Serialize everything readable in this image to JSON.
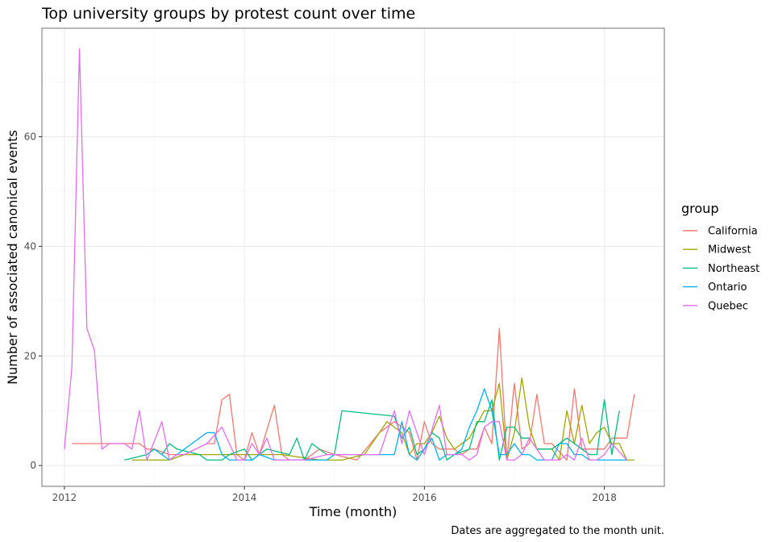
{
  "chart_data": {
    "type": "line",
    "title": "Top university groups by protest count over time",
    "xlabel": "Time (month)",
    "ylabel": "Number of associated canonical events",
    "caption": "Dates are aggregated to the month unit.",
    "xlim": [
      "2011-10",
      "2018-09"
    ],
    "ylim": [
      -3.8,
      79.8
    ],
    "x_ticks": [
      "2012-01",
      "2014-01",
      "2016-01",
      "2018-01"
    ],
    "x_tick_labels": [
      "2012",
      "2014",
      "2016",
      "2018"
    ],
    "y_ticks": [
      0,
      20,
      40,
      60
    ],
    "y_tick_labels": [
      "0",
      "20",
      "40",
      "60"
    ],
    "grid": true,
    "legend": {
      "title": "group",
      "position": "right"
    },
    "series": [
      {
        "name": "California",
        "color": "#F8766D",
        "points": [
          [
            "2012-02",
            4
          ],
          [
            "2012-07",
            4
          ],
          [
            "2012-11",
            4
          ],
          [
            "2012-12",
            3
          ],
          [
            "2013-01",
            3
          ],
          [
            "2013-03",
            2
          ],
          [
            "2013-05",
            2
          ],
          [
            "2013-08",
            4
          ],
          [
            "2013-09",
            4
          ],
          [
            "2013-10",
            12
          ],
          [
            "2013-11",
            13
          ],
          [
            "2013-12",
            2
          ],
          [
            "2014-01",
            1
          ],
          [
            "2014-02",
            6
          ],
          [
            "2014-03",
            2
          ],
          [
            "2014-05",
            11
          ],
          [
            "2014-06",
            2
          ],
          [
            "2014-07",
            1
          ],
          [
            "2014-09",
            1
          ],
          [
            "2014-11",
            3
          ],
          [
            "2015-01",
            2
          ],
          [
            "2015-04",
            1
          ],
          [
            "2015-07",
            6
          ],
          [
            "2015-09",
            8
          ],
          [
            "2015-10",
            7
          ],
          [
            "2015-11",
            6
          ],
          [
            "2015-12",
            1
          ],
          [
            "2016-01",
            8
          ],
          [
            "2016-02",
            4
          ],
          [
            "2016-03",
            3
          ],
          [
            "2016-05",
            3
          ],
          [
            "2016-06",
            2
          ],
          [
            "2016-07",
            3
          ],
          [
            "2016-08",
            3
          ],
          [
            "2016-09",
            7
          ],
          [
            "2016-10",
            4
          ],
          [
            "2016-11",
            25
          ],
          [
            "2016-12",
            1
          ],
          [
            "2017-01",
            15
          ],
          [
            "2017-02",
            3
          ],
          [
            "2017-03",
            4
          ],
          [
            "2017-04",
            13
          ],
          [
            "2017-05",
            4
          ],
          [
            "2017-06",
            4
          ],
          [
            "2017-08",
            1
          ],
          [
            "2017-09",
            14
          ],
          [
            "2017-10",
            3
          ],
          [
            "2017-11",
            3
          ],
          [
            "2017-12",
            3
          ],
          [
            "2018-01",
            3
          ],
          [
            "2018-02",
            5
          ],
          [
            "2018-04",
            5
          ],
          [
            "2018-05",
            13
          ]
        ]
      },
      {
        "name": "Midwest",
        "color": "#A3A500",
        "points": [
          [
            "2012-10",
            1
          ],
          [
            "2013-03",
            1
          ],
          [
            "2013-05",
            2
          ],
          [
            "2013-08",
            2
          ],
          [
            "2014-06",
            2
          ],
          [
            "2014-11",
            1
          ],
          [
            "2015-02",
            1
          ],
          [
            "2015-05",
            2
          ],
          [
            "2015-08",
            8
          ],
          [
            "2015-09",
            7
          ],
          [
            "2015-10",
            6
          ],
          [
            "2015-11",
            2
          ],
          [
            "2015-12",
            4
          ],
          [
            "2016-01",
            4
          ],
          [
            "2016-02",
            6
          ],
          [
            "2016-03",
            9
          ],
          [
            "2016-04",
            5
          ],
          [
            "2016-05",
            3
          ],
          [
            "2016-07",
            5
          ],
          [
            "2016-09",
            10
          ],
          [
            "2016-10",
            10
          ],
          [
            "2016-11",
            15
          ],
          [
            "2016-12",
            1
          ],
          [
            "2017-01",
            6
          ],
          [
            "2017-02",
            16
          ],
          [
            "2017-03",
            7
          ],
          [
            "2017-04",
            3
          ],
          [
            "2017-05",
            3
          ],
          [
            "2017-06",
            3
          ],
          [
            "2017-07",
            1
          ],
          [
            "2017-08",
            10
          ],
          [
            "2017-09",
            4
          ],
          [
            "2017-10",
            11
          ],
          [
            "2017-11",
            4
          ],
          [
            "2017-12",
            6
          ],
          [
            "2018-01",
            7
          ],
          [
            "2018-02",
            4
          ],
          [
            "2018-03",
            4
          ],
          [
            "2018-04",
            1
          ],
          [
            "2018-05",
            1
          ]
        ]
      },
      {
        "name": "Northeast",
        "color": "#00BF7D",
        "points": [
          [
            "2012-09",
            1
          ],
          [
            "2012-12",
            2
          ],
          [
            "2013-01",
            3
          ],
          [
            "2013-02",
            2
          ],
          [
            "2013-03",
            4
          ],
          [
            "2013-04",
            3
          ],
          [
            "2013-07",
            2
          ],
          [
            "2013-08",
            1
          ],
          [
            "2013-10",
            1
          ],
          [
            "2013-11",
            2
          ],
          [
            "2014-01",
            3
          ],
          [
            "2014-02",
            1
          ],
          [
            "2014-04",
            3
          ],
          [
            "2014-07",
            2
          ],
          [
            "2014-08",
            5
          ],
          [
            "2014-09",
            1
          ],
          [
            "2014-10",
            4
          ],
          [
            "2014-12",
            2
          ],
          [
            "2015-01",
            2
          ],
          [
            "2015-02",
            10
          ],
          [
            "2015-09",
            9
          ],
          [
            "2015-10",
            5
          ],
          [
            "2015-11",
            7
          ],
          [
            "2015-12",
            2
          ],
          [
            "2016-01",
            3
          ],
          [
            "2016-02",
            6
          ],
          [
            "2016-03",
            5
          ],
          [
            "2016-04",
            1
          ],
          [
            "2016-05",
            2
          ],
          [
            "2016-07",
            3
          ],
          [
            "2016-08",
            8
          ],
          [
            "2016-09",
            8
          ],
          [
            "2016-10",
            12
          ],
          [
            "2016-11",
            1
          ],
          [
            "2016-12",
            7
          ],
          [
            "2017-01",
            7
          ],
          [
            "2017-02",
            5
          ],
          [
            "2017-03",
            5
          ],
          [
            "2017-04",
            3
          ],
          [
            "2017-05",
            3
          ],
          [
            "2017-06",
            3
          ],
          [
            "2017-08",
            5
          ],
          [
            "2017-09",
            4
          ],
          [
            "2017-10",
            3
          ],
          [
            "2017-11",
            2
          ],
          [
            "2017-12",
            2
          ],
          [
            "2018-01",
            12
          ],
          [
            "2018-02",
            2
          ],
          [
            "2018-03",
            10
          ]
        ]
      },
      {
        "name": "Ontario",
        "color": "#00B0F6",
        "points": [
          [
            "2013-01",
            3
          ],
          [
            "2013-02",
            2
          ],
          [
            "2013-03",
            1
          ],
          [
            "2013-06",
            4
          ],
          [
            "2013-08",
            6
          ],
          [
            "2013-09",
            6
          ],
          [
            "2013-10",
            2
          ],
          [
            "2013-11",
            1
          ],
          [
            "2014-01",
            1
          ],
          [
            "2014-02",
            1
          ],
          [
            "2014-03",
            2
          ],
          [
            "2014-05",
            1
          ],
          [
            "2014-08",
            1
          ],
          [
            "2014-12",
            1
          ],
          [
            "2015-01",
            2
          ],
          [
            "2015-09",
            2
          ],
          [
            "2015-10",
            8
          ],
          [
            "2015-11",
            2
          ],
          [
            "2015-12",
            1
          ],
          [
            "2016-01",
            3
          ],
          [
            "2016-02",
            5
          ],
          [
            "2016-03",
            1
          ],
          [
            "2016-04",
            2
          ],
          [
            "2016-05",
            2
          ],
          [
            "2016-06",
            3
          ],
          [
            "2016-07",
            7
          ],
          [
            "2016-08",
            10
          ],
          [
            "2016-09",
            14
          ],
          [
            "2016-10",
            10
          ],
          [
            "2016-11",
            2
          ],
          [
            "2016-12",
            2
          ],
          [
            "2017-01",
            4
          ],
          [
            "2017-02",
            2
          ],
          [
            "2017-03",
            2
          ],
          [
            "2017-04",
            1
          ],
          [
            "2017-05",
            1
          ],
          [
            "2017-06",
            1
          ],
          [
            "2017-07",
            4
          ],
          [
            "2017-08",
            4
          ],
          [
            "2017-09",
            2
          ],
          [
            "2017-10",
            2
          ],
          [
            "2017-11",
            1
          ],
          [
            "2017-12",
            1
          ],
          [
            "2018-01",
            1
          ],
          [
            "2018-02",
            1
          ],
          [
            "2018-03",
            1
          ],
          [
            "2018-04",
            1
          ]
        ]
      },
      {
        "name": "Quebec",
        "color": "#E76BF3",
        "points": [
          [
            "2012-01",
            3
          ],
          [
            "2012-02",
            18
          ],
          [
            "2012-03",
            76
          ],
          [
            "2012-04",
            25
          ],
          [
            "2012-05",
            21
          ],
          [
            "2012-06",
            3
          ],
          [
            "2012-07",
            4
          ],
          [
            "2012-09",
            4
          ],
          [
            "2012-10",
            3
          ],
          [
            "2012-11",
            10
          ],
          [
            "2012-12",
            1
          ],
          [
            "2013-02",
            8
          ],
          [
            "2013-03",
            1
          ],
          [
            "2013-04",
            2
          ],
          [
            "2013-05",
            2
          ],
          [
            "2013-08",
            4
          ],
          [
            "2013-10",
            7
          ],
          [
            "2013-11",
            4
          ],
          [
            "2013-12",
            1
          ],
          [
            "2014-01",
            1
          ],
          [
            "2014-02",
            4
          ],
          [
            "2014-03",
            2
          ],
          [
            "2014-04",
            5
          ],
          [
            "2014-05",
            1
          ],
          [
            "2014-09",
            1
          ],
          [
            "2014-12",
            2
          ],
          [
            "2015-07",
            2
          ],
          [
            "2015-09",
            10
          ],
          [
            "2015-10",
            4
          ],
          [
            "2015-11",
            10
          ],
          [
            "2015-12",
            6
          ],
          [
            "2016-01",
            2
          ],
          [
            "2016-03",
            11
          ],
          [
            "2016-04",
            2
          ],
          [
            "2016-05",
            2
          ],
          [
            "2016-06",
            2
          ],
          [
            "2016-07",
            1
          ],
          [
            "2016-08",
            2
          ],
          [
            "2016-09",
            7
          ],
          [
            "2016-10",
            8
          ],
          [
            "2016-11",
            8
          ],
          [
            "2016-12",
            1
          ],
          [
            "2017-01",
            1
          ],
          [
            "2017-02",
            2
          ],
          [
            "2017-03",
            5
          ],
          [
            "2017-04",
            3
          ],
          [
            "2017-05",
            1
          ],
          [
            "2017-06",
            1
          ],
          [
            "2017-07",
            1
          ],
          [
            "2017-08",
            2
          ],
          [
            "2017-09",
            1
          ],
          [
            "2017-10",
            5
          ],
          [
            "2017-11",
            1
          ],
          [
            "2017-12",
            1
          ],
          [
            "2018-01",
            2
          ],
          [
            "2018-02",
            4
          ],
          [
            "2018-04",
            1
          ]
        ]
      }
    ]
  }
}
